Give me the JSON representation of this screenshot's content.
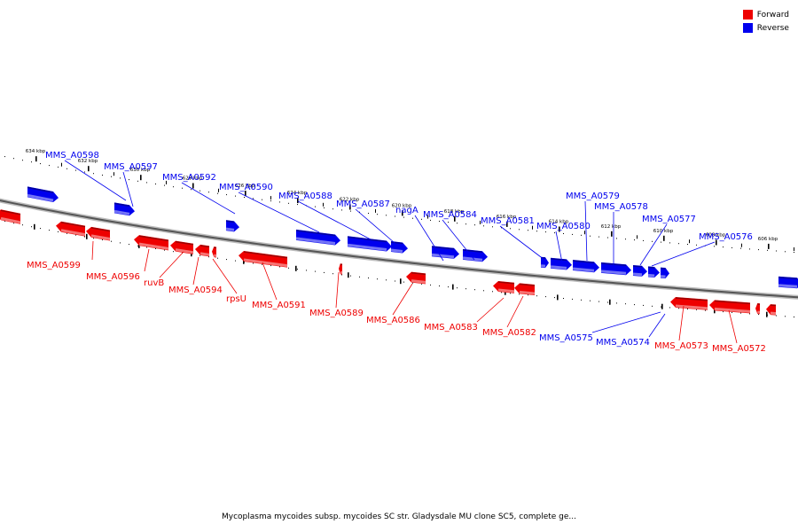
{
  "caption": "Mycoplasma mycoides subsp. mycoides SC str. Gladysdale MU clone SC5, complete ge...",
  "legend": [
    {
      "label": "Forward",
      "color": "#ee0000"
    },
    {
      "label": "Reverse",
      "color": "#0000ee"
    }
  ],
  "colors": {
    "forward": "#ee0000",
    "reverse": "#0000ee",
    "backbone": "#888888"
  },
  "ticks": [
    "634 kbp",
    "632 kbp",
    "630 kbp",
    "628 kbp",
    "626 kbp",
    "624 kbp",
    "622 kbp",
    "620 kbp",
    "618 kbp",
    "616 kbp",
    "614 kbp",
    "612 kbp",
    "610 kbp",
    "608 kbp",
    "606 kbp"
  ],
  "genes": [
    {
      "label": "MMS_A0599",
      "strand": "forward"
    },
    {
      "label": "MMS_A0598",
      "strand": "reverse"
    },
    {
      "label": "MMS_A0597",
      "strand": "reverse"
    },
    {
      "label": "MMS_A0596",
      "strand": "forward"
    },
    {
      "label": "ruvB",
      "strand": "forward"
    },
    {
      "label": "MMS_A0594",
      "strand": "forward"
    },
    {
      "label": "rpsU",
      "strand": "forward"
    },
    {
      "label": "MMS_A0592",
      "strand": "reverse"
    },
    {
      "label": "MMS_A0591",
      "strand": "forward"
    },
    {
      "label": "MMS_A0590",
      "strand": "reverse"
    },
    {
      "label": "MMS_A0589",
      "strand": "forward"
    },
    {
      "label": "MMS_A0588",
      "strand": "reverse"
    },
    {
      "label": "MMS_A0587",
      "strand": "reverse"
    },
    {
      "label": "nagA",
      "strand": "reverse"
    },
    {
      "label": "MMS_A0586",
      "strand": "forward"
    },
    {
      "label": "MMS_A0584",
      "strand": "reverse"
    },
    {
      "label": "MMS_A0583",
      "strand": "forward"
    },
    {
      "label": "MMS_A0582",
      "strand": "forward"
    },
    {
      "label": "MMS_A0581",
      "strand": "reverse"
    },
    {
      "label": "MMS_A0580",
      "strand": "reverse"
    },
    {
      "label": "MMS_A0579",
      "strand": "reverse"
    },
    {
      "label": "MMS_A0578",
      "strand": "reverse"
    },
    {
      "label": "MMS_A0577",
      "strand": "reverse"
    },
    {
      "label": "MMS_A0576",
      "strand": "reverse"
    },
    {
      "label": "MMS_A0575",
      "strand": "reverse"
    },
    {
      "label": "MMS_A0574",
      "strand": "reverse"
    },
    {
      "label": "MMS_A0573",
      "strand": "forward"
    },
    {
      "label": "MMS_A0572",
      "strand": "forward"
    }
  ]
}
